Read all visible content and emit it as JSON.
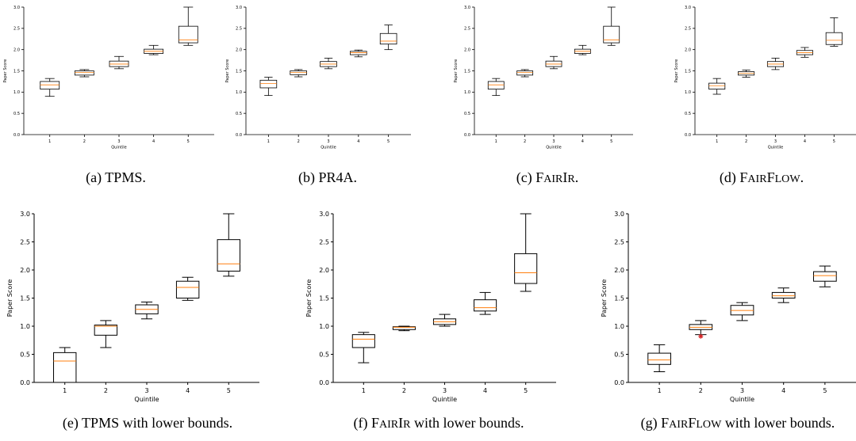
{
  "colors": {
    "box": "#000000",
    "median": "#ff7f0e",
    "outlier": "#d62728"
  },
  "chart_data": [
    {
      "type": "boxplot",
      "caption": "(a) TPMS.",
      "caption_parts": [
        {
          "t": "(a) TPMS."
        }
      ],
      "xlabel": "Quintile",
      "ylabel": "Paper Score",
      "categories": [
        "1",
        "2",
        "3",
        "4",
        "5"
      ],
      "ylim": [
        0,
        3
      ],
      "yticks": [
        "0.0",
        "0.5",
        "1.0",
        "1.5",
        "2.0",
        "2.5",
        "3.0"
      ],
      "boxes": [
        {
          "whislo": 0.9,
          "q1": 1.07,
          "med": 1.17,
          "q3": 1.25,
          "whishi": 1.32
        },
        {
          "whislo": 1.36,
          "q1": 1.4,
          "med": 1.46,
          "q3": 1.5,
          "whishi": 1.53
        },
        {
          "whislo": 1.55,
          "q1": 1.6,
          "med": 1.66,
          "q3": 1.73,
          "whishi": 1.84
        },
        {
          "whislo": 1.88,
          "q1": 1.91,
          "med": 1.96,
          "q3": 2.01,
          "whishi": 2.1
        },
        {
          "whislo": 2.1,
          "q1": 2.16,
          "med": 2.23,
          "q3": 2.55,
          "whishi": 3.0
        }
      ]
    },
    {
      "type": "boxplot",
      "caption": "(b) PR4A.",
      "caption_parts": [
        {
          "t": "(b) PR4A."
        }
      ],
      "xlabel": "Quintile",
      "ylabel": "Paper Score",
      "categories": [
        "1",
        "2",
        "3",
        "4",
        "5"
      ],
      "ylim": [
        0,
        3
      ],
      "yticks": [
        "0.0",
        "0.5",
        "1.0",
        "1.5",
        "2.0",
        "2.5",
        "3.0"
      ],
      "boxes": [
        {
          "whislo": 0.92,
          "q1": 1.1,
          "med": 1.2,
          "q3": 1.28,
          "whishi": 1.35
        },
        {
          "whislo": 1.36,
          "q1": 1.41,
          "med": 1.46,
          "q3": 1.5,
          "whishi": 1.53
        },
        {
          "whislo": 1.55,
          "q1": 1.6,
          "med": 1.66,
          "q3": 1.72,
          "whishi": 1.8
        },
        {
          "whislo": 1.83,
          "q1": 1.88,
          "med": 1.93,
          "q3": 1.96,
          "whishi": 1.99
        },
        {
          "whislo": 2.0,
          "q1": 2.13,
          "med": 2.2,
          "q3": 2.38,
          "whishi": 2.58
        }
      ]
    },
    {
      "type": "boxplot",
      "caption": "(c) FairIR.",
      "caption_parts": [
        {
          "t": "(c) F"
        },
        {
          "t": "AIR",
          "sc": true
        },
        {
          "t": "I"
        },
        {
          "t": "R",
          "sc": true
        },
        {
          "t": "."
        }
      ],
      "xlabel": "Quintile",
      "ylabel": "Paper Score",
      "categories": [
        "1",
        "2",
        "3",
        "4",
        "5"
      ],
      "ylim": [
        0,
        3
      ],
      "yticks": [
        "0.0",
        "0.5",
        "1.0",
        "1.5",
        "2.0",
        "2.5",
        "3.0"
      ],
      "boxes": [
        {
          "whislo": 0.92,
          "q1": 1.07,
          "med": 1.17,
          "q3": 1.25,
          "whishi": 1.32
        },
        {
          "whislo": 1.36,
          "q1": 1.4,
          "med": 1.46,
          "q3": 1.5,
          "whishi": 1.53
        },
        {
          "whislo": 1.55,
          "q1": 1.6,
          "med": 1.66,
          "q3": 1.73,
          "whishi": 1.84
        },
        {
          "whislo": 1.88,
          "q1": 1.91,
          "med": 1.96,
          "q3": 2.01,
          "whishi": 2.1
        },
        {
          "whislo": 2.1,
          "q1": 2.16,
          "med": 2.23,
          "q3": 2.55,
          "whishi": 3.0
        }
      ]
    },
    {
      "type": "boxplot",
      "caption": "(d) FairFlow.",
      "caption_parts": [
        {
          "t": "(d) F"
        },
        {
          "t": "AIR",
          "sc": true
        },
        {
          "t": "F"
        },
        {
          "t": "LOW",
          "sc": true
        },
        {
          "t": "."
        }
      ],
      "xlabel": "Quintile",
      "ylabel": "Paper Score",
      "categories": [
        "1",
        "2",
        "3",
        "4",
        "5"
      ],
      "ylim": [
        0,
        3
      ],
      "yticks": [
        "0.0",
        "0.5",
        "1.0",
        "1.5",
        "2.0",
        "2.5",
        "3.0"
      ],
      "boxes": [
        {
          "whislo": 0.95,
          "q1": 1.07,
          "med": 1.15,
          "q3": 1.21,
          "whishi": 1.32
        },
        {
          "whislo": 1.35,
          "q1": 1.4,
          "med": 1.44,
          "q3": 1.48,
          "whishi": 1.52
        },
        {
          "whislo": 1.53,
          "q1": 1.6,
          "med": 1.66,
          "q3": 1.72,
          "whishi": 1.8
        },
        {
          "whislo": 1.82,
          "q1": 1.88,
          "med": 1.93,
          "q3": 1.98,
          "whishi": 2.05
        },
        {
          "whislo": 2.08,
          "q1": 2.12,
          "med": 2.22,
          "q3": 2.4,
          "whishi": 2.75
        }
      ]
    },
    {
      "type": "boxplot",
      "caption": "(e) TPMS with lower bounds.",
      "caption_parts": [
        {
          "t": "(e) TPMS with lower bounds."
        }
      ],
      "xlabel": "Quintile",
      "ylabel": "Paper Score",
      "categories": [
        "1",
        "2",
        "3",
        "4",
        "5"
      ],
      "ylim": [
        0,
        3
      ],
      "yticks": [
        "0.0",
        "0.5",
        "1.0",
        "1.5",
        "2.0",
        "2.5",
        "3.0"
      ],
      "boxes": [
        {
          "whislo": 0.0,
          "q1": 0.0,
          "med": 0.38,
          "q3": 0.53,
          "whishi": 0.62
        },
        {
          "whislo": 0.62,
          "q1": 0.84,
          "med": 1.0,
          "q3": 1.02,
          "whishi": 1.1
        },
        {
          "whislo": 1.13,
          "q1": 1.22,
          "med": 1.3,
          "q3": 1.38,
          "whishi": 1.43
        },
        {
          "whislo": 1.46,
          "q1": 1.5,
          "med": 1.69,
          "q3": 1.8,
          "whishi": 1.87
        },
        {
          "whislo": 1.89,
          "q1": 1.98,
          "med": 2.11,
          "q3": 2.54,
          "whishi": 3.0
        }
      ]
    },
    {
      "type": "boxplot",
      "caption": "(f) FairIr with lower bounds.",
      "caption_parts": [
        {
          "t": "(f) F"
        },
        {
          "t": "AIR",
          "sc": true
        },
        {
          "t": "I"
        },
        {
          "t": "R",
          "sc": true
        },
        {
          "t": " with lower bounds."
        }
      ],
      "xlabel": "Quintile",
      "ylabel": "Paper Score",
      "categories": [
        "1",
        "2",
        "3",
        "4",
        "5"
      ],
      "ylim": [
        0,
        3
      ],
      "yticks": [
        "0.0",
        "0.5",
        "1.0",
        "1.5",
        "2.0",
        "2.5",
        "3.0"
      ],
      "boxes": [
        {
          "whislo": 0.35,
          "q1": 0.62,
          "med": 0.77,
          "q3": 0.85,
          "whishi": 0.89
        },
        {
          "whislo": 0.92,
          "q1": 0.94,
          "med": 0.98,
          "q3": 0.99,
          "whishi": 1.0
        },
        {
          "whislo": 1.0,
          "q1": 1.03,
          "med": 1.08,
          "q3": 1.13,
          "whishi": 1.21
        },
        {
          "whislo": 1.21,
          "q1": 1.27,
          "med": 1.33,
          "q3": 1.47,
          "whishi": 1.6
        },
        {
          "whislo": 1.62,
          "q1": 1.76,
          "med": 1.95,
          "q3": 2.29,
          "whishi": 3.0
        }
      ]
    },
    {
      "type": "boxplot",
      "caption": "(g) FairFlow with lower bounds.",
      "caption_parts": [
        {
          "t": "(g) F"
        },
        {
          "t": "AIR",
          "sc": true
        },
        {
          "t": "F"
        },
        {
          "t": "LOW",
          "sc": true
        },
        {
          "t": " with lower bounds."
        }
      ],
      "xlabel": "Quintile",
      "ylabel": "Paper Score",
      "categories": [
        "1",
        "2",
        "3",
        "4",
        "5"
      ],
      "ylim": [
        0,
        3
      ],
      "yticks": [
        "0.0",
        "0.5",
        "1.0",
        "1.5",
        "2.0",
        "2.5",
        "3.0"
      ],
      "boxes": [
        {
          "whislo": 0.19,
          "q1": 0.32,
          "med": 0.4,
          "q3": 0.52,
          "whishi": 0.67
        },
        {
          "whislo": 0.85,
          "q1": 0.94,
          "med": 0.98,
          "q3": 1.03,
          "whishi": 1.1,
          "fliers": [
            0.82
          ]
        },
        {
          "whislo": 1.1,
          "q1": 1.2,
          "med": 1.28,
          "q3": 1.37,
          "whishi": 1.42
        },
        {
          "whislo": 1.42,
          "q1": 1.5,
          "med": 1.54,
          "q3": 1.6,
          "whishi": 1.68
        },
        {
          "whislo": 1.7,
          "q1": 1.8,
          "med": 1.9,
          "q3": 1.97,
          "whishi": 2.07
        }
      ]
    }
  ]
}
